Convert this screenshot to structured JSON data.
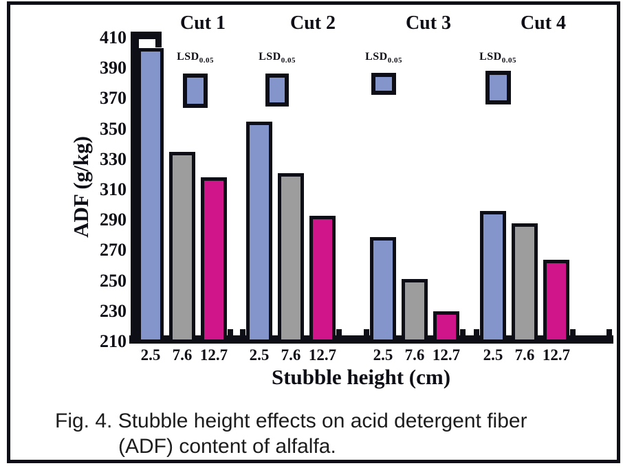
{
  "figure": {
    "caption_line1": "Fig. 4. Stubble height effects on acid detergent fiber",
    "caption_line2": "(ADF) content of alfalfa."
  },
  "chart_data": {
    "type": "bar",
    "title": "",
    "xlabel": "Stubble height (cm)",
    "ylabel": "ADF (g/kg)",
    "ylim": [
      210,
      410
    ],
    "ytick_interval": 20,
    "yticks": [
      410,
      390,
      370,
      350,
      330,
      310,
      290,
      270,
      250,
      230,
      210
    ],
    "grid": false,
    "bar_categories": [
      "2.5",
      "7.6",
      "12.7"
    ],
    "bar_colors": [
      "#8395CB",
      "#9D9D9D",
      "#D0158A"
    ],
    "outline_color": "#0e0e16",
    "lsd_label": "LSD",
    "lsd_subscript": "0.05",
    "groups": [
      {
        "label": "Cut 1",
        "values": [
          403,
          335,
          318
        ]
      },
      {
        "label": "Cut 2",
        "values": [
          355,
          321,
          293
        ]
      },
      {
        "label": "Cut 3",
        "values": [
          279,
          251,
          230
        ]
      },
      {
        "label": "Cut 4",
        "values": [
          296,
          288,
          264
        ]
      }
    ]
  }
}
